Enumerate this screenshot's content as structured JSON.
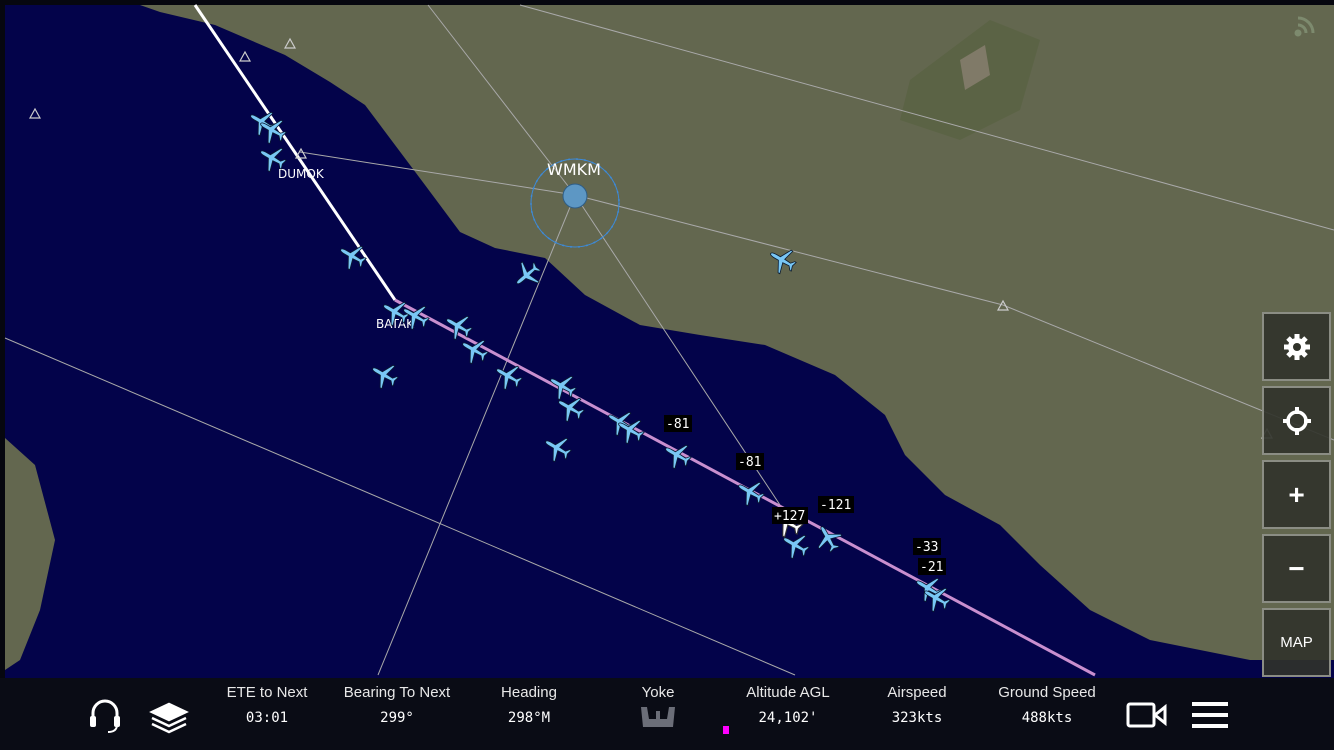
{
  "map": {
    "airport": "WMKM",
    "waypoints": [
      "DUMOK",
      "BATAK"
    ],
    "traffic_labels": [
      "-81",
      "-81",
      "+127",
      "-121",
      "-33",
      "-21"
    ],
    "colors": {
      "ocean": "#03034a",
      "land": "#63674f",
      "route": "#c98fcf",
      "traffic": "#79c7f5"
    }
  },
  "controls": {
    "settings": "gear-icon",
    "center": "crosshair-icon",
    "zoom_in": "+",
    "zoom_out": "−",
    "map_label": "MAP"
  },
  "bottom_bar": {
    "stats": [
      {
        "label": "ETE to Next",
        "value": "03:01"
      },
      {
        "label": "Bearing To Next",
        "value": "299°"
      },
      {
        "label": "Heading",
        "value": "298°M"
      },
      {
        "label": "Yoke",
        "value": ""
      },
      {
        "label": "Altitude AGL",
        "value": "24,102'"
      },
      {
        "label": "Airspeed",
        "value": "323kts"
      },
      {
        "label": "Ground Speed",
        "value": "488kts"
      }
    ]
  }
}
